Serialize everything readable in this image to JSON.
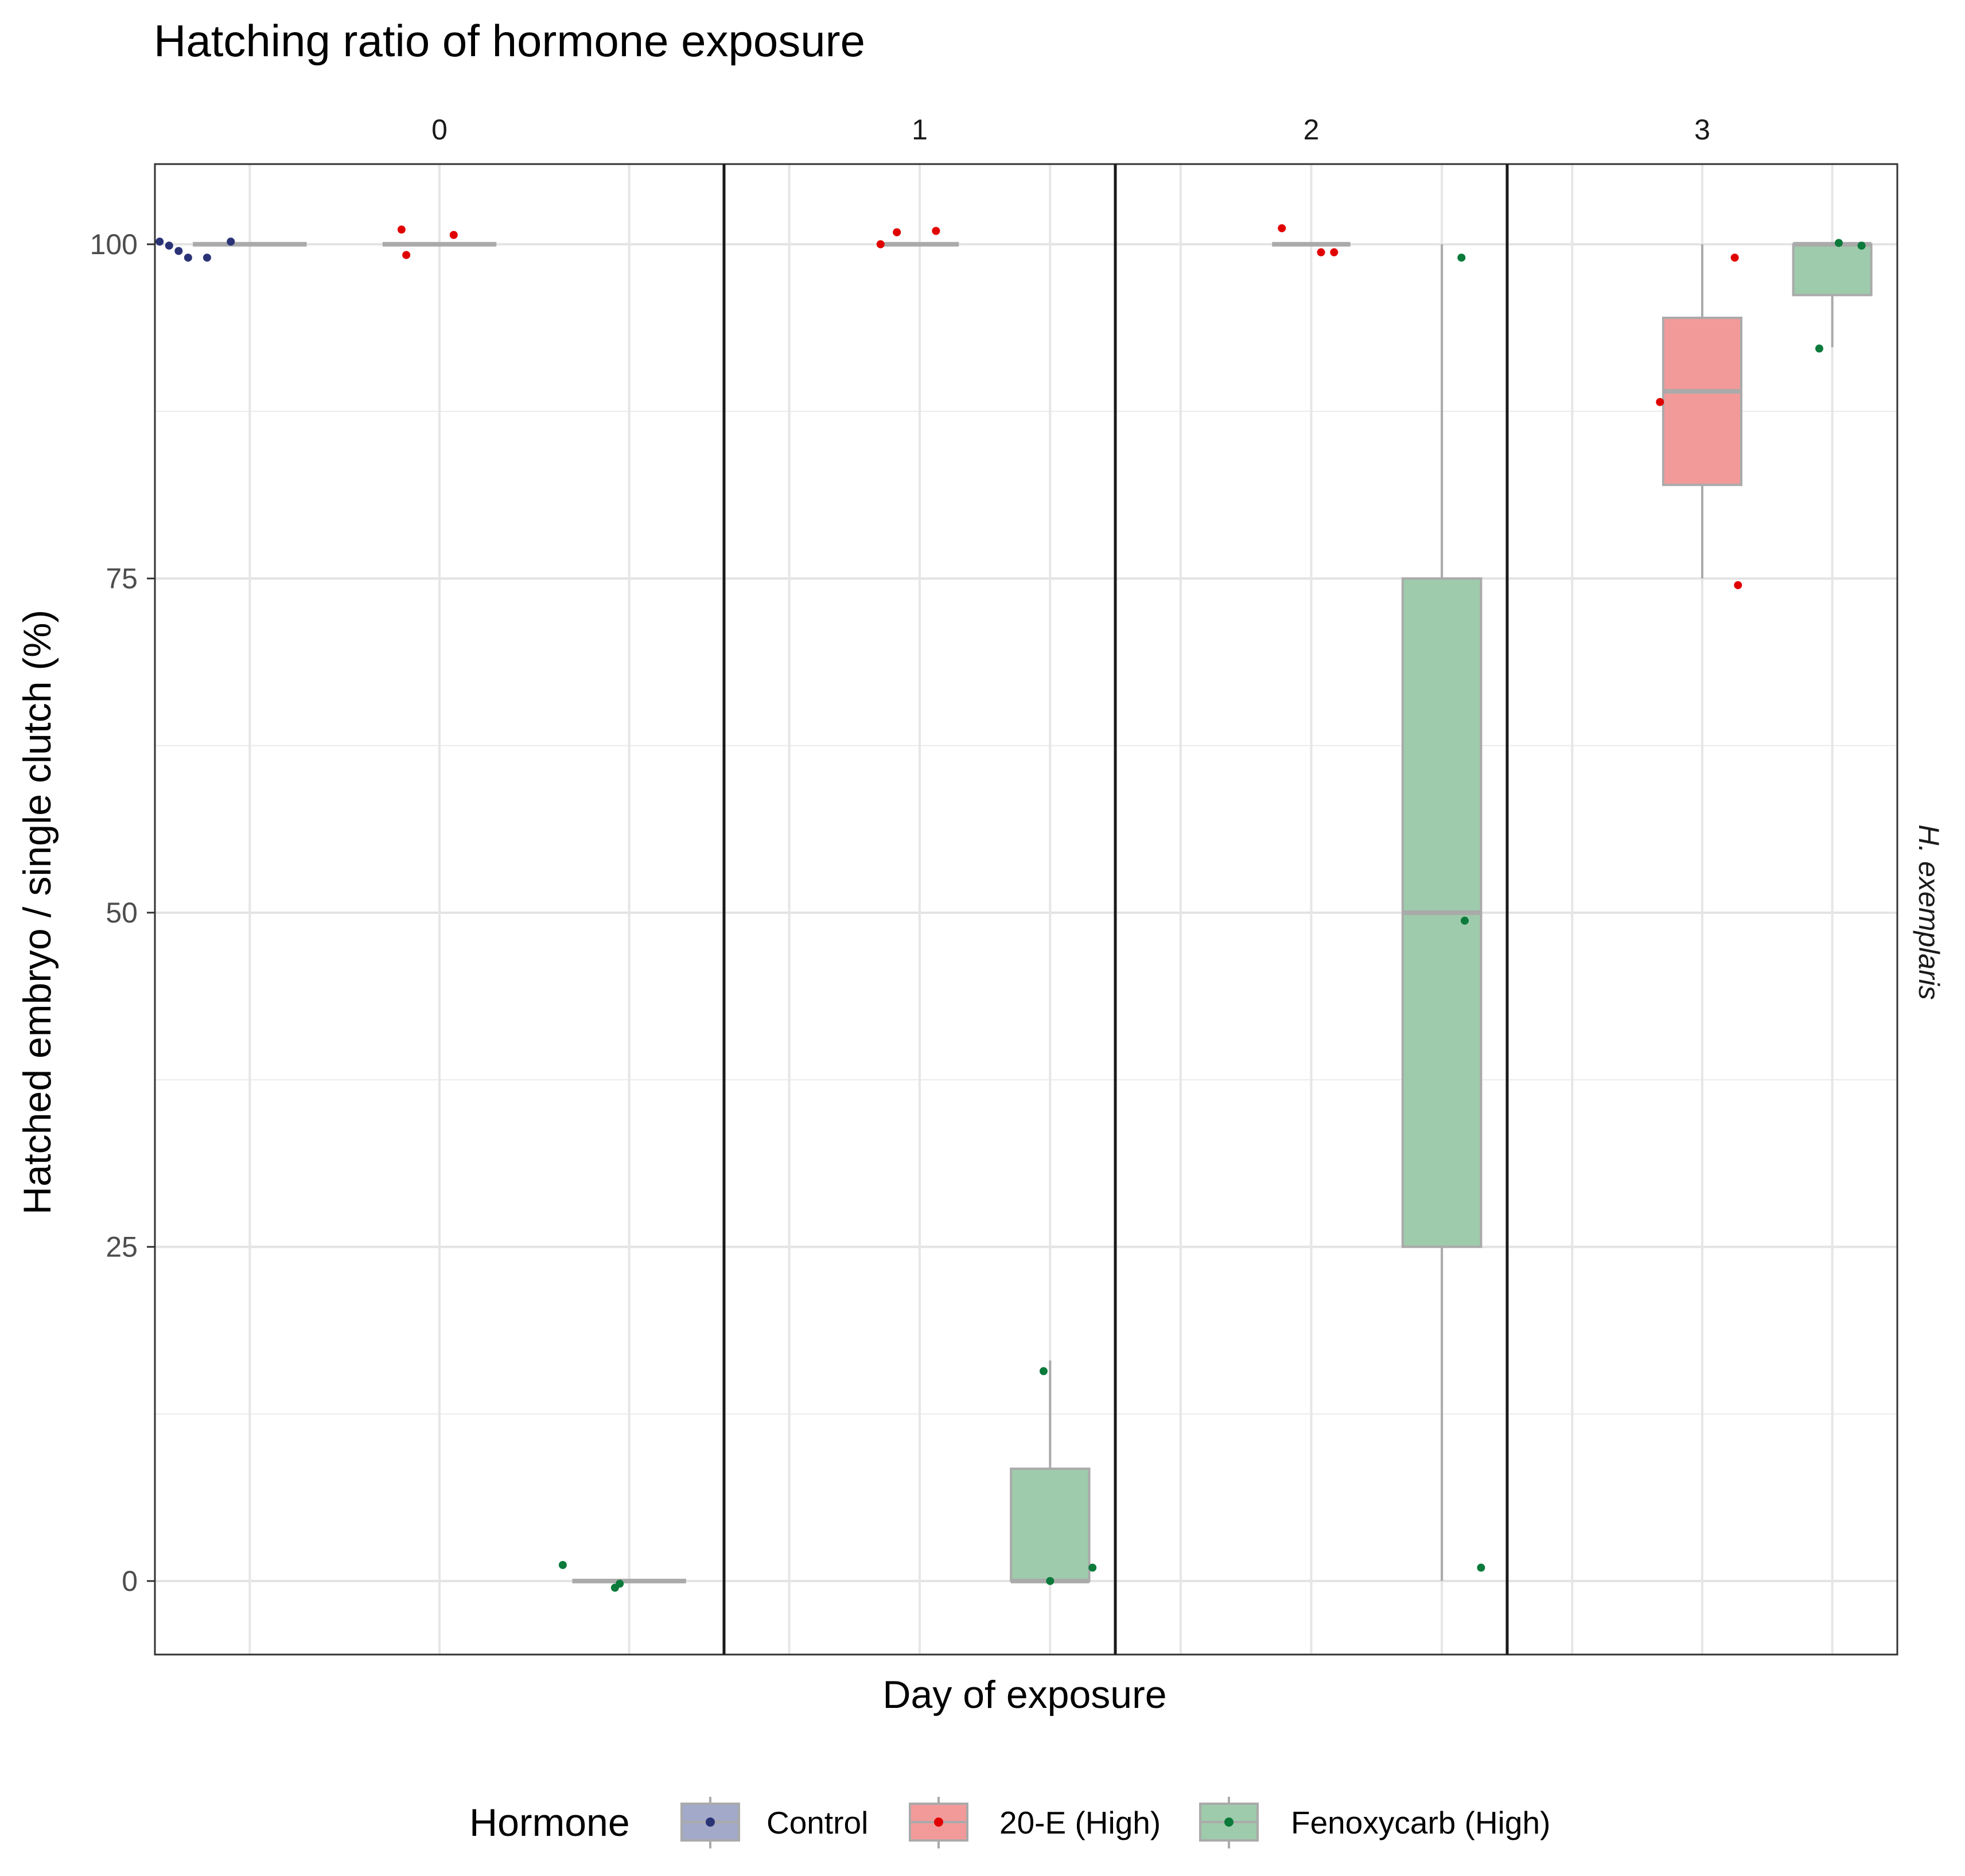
{
  "chart_data": {
    "type": "box",
    "title": "Hatching ratio of hormone exposure",
    "xlabel": "Day of exposure",
    "ylabel": "Hatched embryo  / single clutch (%)",
    "facet_row_label": "H. exemplaris",
    "facets": [
      "0",
      "1",
      "2",
      "3"
    ],
    "ylim": [
      -5.5,
      106.0
    ],
    "y_ticks": [
      "0",
      "25",
      "50",
      "75",
      "100"
    ],
    "grid": true,
    "legend": {
      "title": "Hormone",
      "position": "bottom",
      "entries": [
        "Control",
        "20-E (High)",
        "Fenoxycarb (High)"
      ]
    },
    "colors": {
      "Control": {
        "fill": "#a3a9c8",
        "point": "#2b3377"
      },
      "20-E (High)": {
        "fill": "#f29a9a",
        "point": "#e00000"
      },
      "Fenoxycarb (High)": {
        "fill": "#9ecbab",
        "point": "#0b7a3a"
      },
      "box_line": "#aaaaaa"
    },
    "series": [
      {
        "name": "Control",
        "groups": [
          {
            "facet": "0",
            "box": {
              "min": 100,
              "q1": 100,
              "median": 100,
              "q3": 100,
              "max": 100
            },
            "points": [
              100.2,
              99.9,
              99.5,
              99.0,
              99.0,
              100.2
            ]
          },
          {
            "facet": "1",
            "box": null,
            "points": []
          },
          {
            "facet": "2",
            "box": null,
            "points": []
          },
          {
            "facet": "3",
            "box": null,
            "points": []
          }
        ]
      },
      {
        "name": "20-E (High)",
        "groups": [
          {
            "facet": "0",
            "box": {
              "min": 100,
              "q1": 100,
              "median": 100,
              "q3": 100,
              "max": 100
            },
            "points": [
              101.1,
              99.2,
              100.7
            ]
          },
          {
            "facet": "1",
            "box": {
              "min": 100,
              "q1": 100,
              "median": 100,
              "q3": 100,
              "max": 100
            },
            "points": [
              100.0,
              100.9,
              101.0
            ]
          },
          {
            "facet": "2",
            "box": {
              "min": 100,
              "q1": 100,
              "median": 100,
              "q3": 100,
              "max": 100
            },
            "points": [
              101.2,
              99.4,
              99.4
            ]
          },
          {
            "facet": "3",
            "box": {
              "min": 75,
              "q1": 82,
              "median": 89,
              "q3": 94.5,
              "max": 100
            },
            "points": [
              88.2,
              99.0,
              74.5
            ]
          }
        ]
      },
      {
        "name": "Fenoxycarb (High)",
        "groups": [
          {
            "facet": "0",
            "box": {
              "min": 0,
              "q1": 0,
              "median": 0,
              "q3": 0,
              "max": 0
            },
            "points": [
              1.2,
              -0.5,
              -0.2
            ]
          },
          {
            "facet": "1",
            "box": {
              "min": 0,
              "q1": 0,
              "median": 0,
              "q3": 8.4,
              "max": 16.5
            },
            "points": [
              15.7,
              0.0,
              1.0
            ]
          },
          {
            "facet": "2",
            "box": {
              "min": 0,
              "q1": 25,
              "median": 50,
              "q3": 75,
              "max": 100
            },
            "points": [
              99.0,
              49.4,
              1.0
            ]
          },
          {
            "facet": "3",
            "box": {
              "min": 92.3,
              "q1": 96.2,
              "median": 100,
              "q3": 100,
              "max": 100
            },
            "points": [
              92.2,
              100.1,
              99.9
            ]
          }
        ]
      }
    ]
  }
}
